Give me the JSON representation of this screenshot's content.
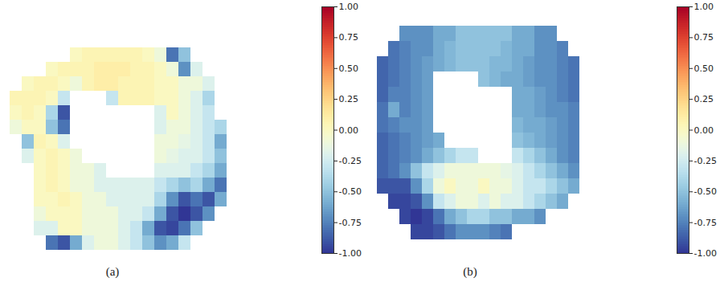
{
  "chart_data": [
    {
      "type": "heatmap",
      "title": "(a)",
      "tick_labels": false,
      "cells": [
        [
          null,
          null,
          null,
          null,
          null,
          0.0,
          0.05,
          0.05,
          0.05,
          0.05,
          0.05,
          0.0,
          -0.1,
          -0.8,
          -0.5,
          null,
          null,
          null
        ],
        [
          null,
          null,
          null,
          0.0,
          0.05,
          0.05,
          0.05,
          0.1,
          0.1,
          0.1,
          0.05,
          0.05,
          0.0,
          -0.1,
          -0.7,
          -0.2,
          null,
          null
        ],
        [
          null,
          0.0,
          0.05,
          0.05,
          0.0,
          -0.1,
          0.05,
          0.1,
          0.1,
          0.05,
          0.05,
          0.05,
          0.0,
          0.0,
          -0.1,
          -0.1,
          -0.2,
          null
        ],
        [
          0.05,
          0.05,
          0.05,
          0.0,
          -0.3,
          null,
          null,
          null,
          -0.3,
          0.05,
          0.05,
          0.05,
          0.0,
          0.0,
          -0.1,
          -0.2,
          -0.4,
          null
        ],
        [
          0.0,
          0.05,
          0.0,
          -0.4,
          -0.9,
          null,
          null,
          null,
          null,
          null,
          null,
          null,
          -0.2,
          0.0,
          -0.1,
          -0.2,
          -0.3,
          null
        ],
        [
          -0.1,
          0.0,
          0.0,
          -0.5,
          -0.8,
          null,
          null,
          null,
          null,
          null,
          null,
          null,
          -0.2,
          -0.1,
          -0.1,
          -0.2,
          -0.3,
          -0.4
        ],
        [
          null,
          -0.5,
          0.05,
          0.0,
          -0.2,
          null,
          null,
          null,
          null,
          null,
          null,
          null,
          -0.1,
          -0.1,
          -0.15,
          -0.2,
          -0.3,
          -0.6
        ],
        [
          null,
          -0.2,
          0.0,
          0.05,
          0.0,
          -0.1,
          null,
          null,
          null,
          null,
          null,
          null,
          -0.1,
          -0.15,
          -0.2,
          -0.2,
          -0.3,
          -0.5
        ],
        [
          null,
          null,
          0.0,
          0.05,
          0.0,
          -0.1,
          -0.1,
          -0.2,
          null,
          null,
          null,
          null,
          -0.2,
          -0.2,
          -0.2,
          -0.3,
          -0.4,
          -0.6
        ],
        [
          null,
          null,
          0.0,
          0.05,
          0.0,
          -0.1,
          -0.1,
          -0.2,
          -0.2,
          -0.2,
          -0.2,
          -0.2,
          -0.3,
          -0.4,
          -0.5,
          -0.4,
          -0.6,
          -0.8
        ],
        [
          null,
          null,
          0.0,
          0.0,
          0.05,
          0.0,
          -0.1,
          -0.1,
          -0.2,
          -0.2,
          -0.2,
          -0.2,
          -0.4,
          -0.7,
          -0.9,
          -0.8,
          -0.9,
          -0.6
        ],
        [
          null,
          null,
          -0.1,
          0.0,
          0.0,
          0.0,
          -0.1,
          -0.1,
          -0.1,
          -0.2,
          -0.2,
          -0.3,
          -0.6,
          -0.9,
          -1.0,
          -0.9,
          -0.7,
          null
        ],
        [
          null,
          null,
          -0.2,
          -0.2,
          0.0,
          0.0,
          -0.1,
          -0.1,
          -0.1,
          -0.2,
          -0.3,
          -0.6,
          -0.9,
          -0.95,
          -0.8,
          -0.5,
          null,
          null
        ],
        [
          null,
          null,
          null,
          -0.8,
          -0.9,
          -0.6,
          -0.2,
          -0.1,
          -0.1,
          -0.2,
          -0.3,
          -0.5,
          -0.7,
          -0.6,
          -0.3,
          null,
          null,
          null
        ]
      ],
      "colorbar_range": [
        -1,
        1
      ],
      "colorbar_ticks": [
        {
          "value": 1,
          "label": "1.00"
        },
        {
          "value": 0.75,
          "label": "0.75"
        },
        {
          "value": 0.5,
          "label": "0.50"
        },
        {
          "value": 0.25,
          "label": "0.25"
        },
        {
          "value": 0,
          "label": "0.00"
        },
        {
          "value": -0.25,
          "label": "-0.25"
        },
        {
          "value": -0.5,
          "label": "-0.50"
        },
        {
          "value": -0.75,
          "label": "-0.75"
        },
        {
          "value": -1,
          "label": "-1.00"
        }
      ]
    },
    {
      "type": "heatmap",
      "title": "(b)",
      "tick_labels": false,
      "cells": [
        [
          null,
          null,
          -0.7,
          -0.7,
          -0.7,
          -0.6,
          -0.6,
          -0.5,
          -0.5,
          -0.5,
          -0.5,
          -0.5,
          -0.6,
          -0.6,
          -0.7,
          -0.7,
          null,
          null
        ],
        [
          null,
          -0.8,
          -0.75,
          -0.7,
          -0.7,
          -0.6,
          -0.55,
          -0.5,
          -0.5,
          -0.5,
          -0.5,
          -0.55,
          -0.6,
          -0.6,
          -0.7,
          -0.7,
          -0.75,
          null
        ],
        [
          -0.85,
          -0.8,
          -0.75,
          -0.7,
          -0.65,
          -0.6,
          -0.55,
          -0.5,
          -0.5,
          -0.5,
          -0.55,
          -0.55,
          -0.6,
          -0.65,
          -0.7,
          -0.7,
          -0.75,
          -0.8
        ],
        [
          -0.85,
          -0.8,
          -0.75,
          -0.7,
          -0.65,
          null,
          null,
          null,
          null,
          -0.5,
          -0.55,
          -0.6,
          -0.6,
          -0.65,
          -0.7,
          -0.7,
          -0.75,
          -0.8
        ],
        [
          -0.85,
          -0.75,
          -0.75,
          -0.7,
          -0.65,
          null,
          null,
          null,
          null,
          null,
          null,
          null,
          -0.6,
          -0.6,
          -0.65,
          -0.7,
          -0.75,
          -0.8
        ],
        [
          -0.8,
          -0.6,
          -0.75,
          -0.7,
          -0.65,
          null,
          null,
          null,
          null,
          null,
          null,
          null,
          -0.6,
          -0.6,
          -0.65,
          -0.7,
          -0.7,
          -0.75
        ],
        [
          -0.8,
          -0.75,
          -0.7,
          -0.7,
          -0.65,
          null,
          null,
          null,
          null,
          null,
          null,
          null,
          -0.55,
          -0.6,
          -0.6,
          -0.65,
          -0.7,
          -0.75
        ],
        [
          -0.85,
          -0.8,
          -0.75,
          -0.7,
          -0.65,
          -0.6,
          null,
          null,
          null,
          null,
          null,
          null,
          -0.5,
          -0.55,
          -0.6,
          -0.65,
          -0.7,
          -0.75
        ],
        [
          -0.85,
          -0.8,
          -0.75,
          -0.7,
          -0.6,
          -0.5,
          -0.4,
          -0.3,
          -0.3,
          null,
          null,
          null,
          -0.3,
          -0.4,
          -0.5,
          -0.6,
          -0.7,
          -0.75
        ],
        [
          -0.85,
          -0.8,
          -0.7,
          -0.5,
          -0.3,
          -0.2,
          -0.1,
          -0.1,
          -0.1,
          -0.1,
          -0.1,
          -0.15,
          -0.2,
          -0.3,
          -0.4,
          -0.5,
          -0.6,
          -0.7
        ],
        [
          -0.9,
          -0.9,
          -0.9,
          -0.7,
          -0.4,
          -0.1,
          0.0,
          -0.1,
          -0.1,
          0.0,
          -0.1,
          -0.1,
          -0.2,
          -0.3,
          -0.3,
          -0.4,
          -0.5,
          -0.6
        ],
        [
          null,
          -0.95,
          -0.95,
          -0.9,
          -0.7,
          -0.3,
          -0.2,
          -0.1,
          -0.1,
          -0.2,
          -0.1,
          -0.2,
          -0.2,
          -0.3,
          -0.4,
          -0.5,
          -0.6,
          null
        ],
        [
          null,
          null,
          -0.95,
          -1.0,
          -0.95,
          -0.8,
          -0.6,
          -0.5,
          -0.4,
          -0.4,
          -0.5,
          -0.5,
          -0.6,
          -0.6,
          -0.7,
          null,
          null,
          null
        ],
        [
          null,
          null,
          null,
          -0.95,
          -0.95,
          -0.9,
          -0.8,
          -0.7,
          -0.7,
          -0.7,
          -0.75,
          -0.8,
          null,
          null,
          null,
          null,
          null,
          null
        ]
      ],
      "colorbar_range": [
        -1,
        1
      ],
      "colorbar_ticks": [
        {
          "value": 1,
          "label": "1.00"
        },
        {
          "value": 0.75,
          "label": "0.75"
        },
        {
          "value": 0.5,
          "label": "0.50"
        },
        {
          "value": 0.25,
          "label": "0.25"
        },
        {
          "value": 0,
          "label": "0.00"
        },
        {
          "value": -0.25,
          "label": "-0.25"
        },
        {
          "value": -0.5,
          "label": "-0.50"
        },
        {
          "value": -0.75,
          "label": "-0.75"
        },
        {
          "value": -1,
          "label": "-1.00"
        }
      ]
    }
  ]
}
